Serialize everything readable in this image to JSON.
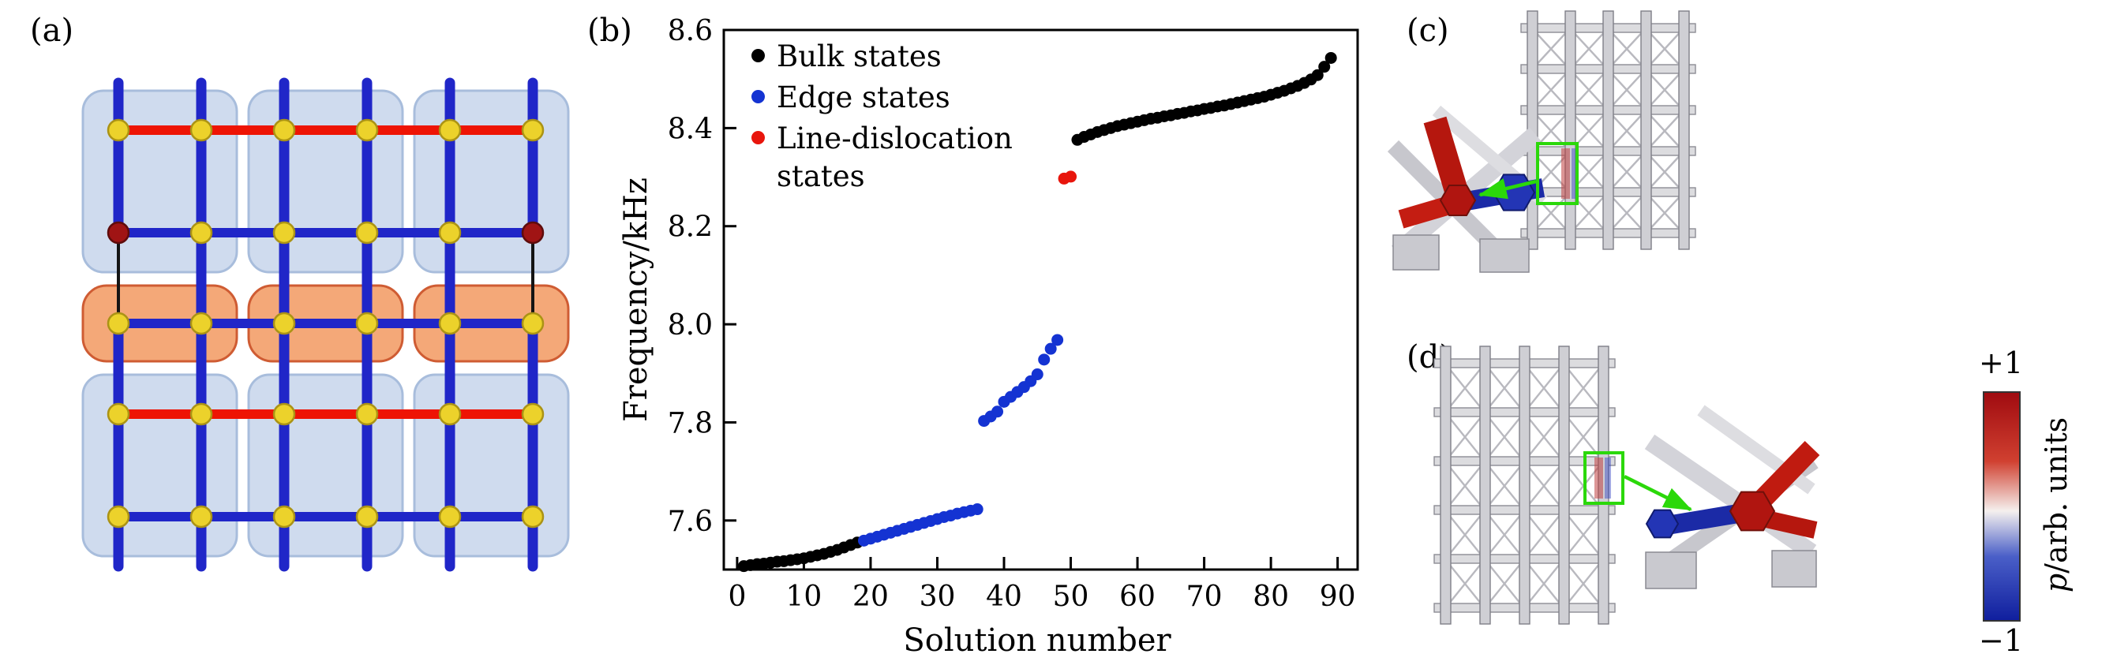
{
  "figure": {
    "background": "#ffffff",
    "panel_labels": {
      "a": "(a)",
      "b": "(b)",
      "c": "(c)",
      "d": "(d)"
    }
  },
  "lattice": {
    "bond_blue_color": "#2026c8",
    "bond_red_color": "#ee1404",
    "bond_dislocation_color": "#141414",
    "site_color": "#ecd22b",
    "edge_site_color": "#a01414",
    "unit_cell_fill": "#cfdbee",
    "dislocation_cell_fill": "#f4a878"
  },
  "chart_data": {
    "type": "scatter",
    "title": "",
    "xlabel": "Solution number",
    "ylabel": "Frequency/kHz",
    "xlim": [
      -2,
      93
    ],
    "ylim": [
      7.5,
      8.6
    ],
    "xticks": [
      0,
      10,
      20,
      30,
      40,
      50,
      60,
      70,
      80,
      90
    ],
    "xtick_labels": [
      "0",
      "10",
      "20",
      "30",
      "40",
      "50",
      "60",
      "70",
      "80",
      "90"
    ],
    "yticks": [
      7.6,
      7.8,
      8.0,
      8.2,
      8.4,
      8.6
    ],
    "ytick_labels": [
      "7.6",
      "7.8",
      "8.0",
      "8.2",
      "8.4",
      "8.6"
    ],
    "grid": false,
    "legend_position": "upper-left",
    "series": [
      {
        "name": "Bulk states",
        "color": "#000000",
        "points": [
          [
            1,
            7.507
          ],
          [
            2,
            7.509
          ],
          [
            3,
            7.511
          ],
          [
            4,
            7.512
          ],
          [
            5,
            7.514
          ],
          [
            6,
            7.516
          ],
          [
            7,
            7.517
          ],
          [
            8,
            7.519
          ],
          [
            9,
            7.521
          ],
          [
            10,
            7.523
          ],
          [
            11,
            7.526
          ],
          [
            12,
            7.529
          ],
          [
            13,
            7.532
          ],
          [
            14,
            7.536
          ],
          [
            15,
            7.54
          ],
          [
            16,
            7.545
          ],
          [
            17,
            7.55
          ],
          [
            18,
            7.555
          ],
          [
            51,
            8.376
          ],
          [
            52,
            8.382
          ],
          [
            53,
            8.387
          ],
          [
            54,
            8.392
          ],
          [
            55,
            8.396
          ],
          [
            56,
            8.4
          ],
          [
            57,
            8.404
          ],
          [
            58,
            8.407
          ],
          [
            59,
            8.41
          ],
          [
            60,
            8.413
          ],
          [
            61,
            8.416
          ],
          [
            62,
            8.419
          ],
          [
            63,
            8.421
          ],
          [
            64,
            8.424
          ],
          [
            65,
            8.426
          ],
          [
            66,
            8.429
          ],
          [
            67,
            8.431
          ],
          [
            68,
            8.434
          ],
          [
            69,
            8.436
          ],
          [
            70,
            8.439
          ],
          [
            71,
            8.441
          ],
          [
            72,
            8.444
          ],
          [
            73,
            8.446
          ],
          [
            74,
            8.449
          ],
          [
            75,
            8.452
          ],
          [
            76,
            8.455
          ],
          [
            77,
            8.458
          ],
          [
            78,
            8.461
          ],
          [
            79,
            8.464
          ],
          [
            80,
            8.468
          ],
          [
            81,
            8.472
          ],
          [
            82,
            8.476
          ],
          [
            83,
            8.481
          ],
          [
            84,
            8.486
          ],
          [
            85,
            8.492
          ],
          [
            86,
            8.499
          ],
          [
            87,
            8.508
          ],
          [
            88,
            8.525
          ],
          [
            89,
            8.543
          ]
        ]
      },
      {
        "name": "Edge states",
        "color": "#1433d2",
        "points": [
          [
            19,
            7.559
          ],
          [
            20,
            7.563
          ],
          [
            21,
            7.567
          ],
          [
            22,
            7.571
          ],
          [
            23,
            7.575
          ],
          [
            24,
            7.579
          ],
          [
            25,
            7.583
          ],
          [
            26,
            7.587
          ],
          [
            27,
            7.591
          ],
          [
            28,
            7.595
          ],
          [
            29,
            7.599
          ],
          [
            30,
            7.603
          ],
          [
            31,
            7.607
          ],
          [
            32,
            7.61
          ],
          [
            33,
            7.614
          ],
          [
            34,
            7.617
          ],
          [
            35,
            7.62
          ],
          [
            36,
            7.623
          ],
          [
            37,
            7.803
          ],
          [
            38,
            7.812
          ],
          [
            39,
            7.822
          ],
          [
            40,
            7.842
          ],
          [
            41,
            7.852
          ],
          [
            42,
            7.862
          ],
          [
            43,
            7.872
          ],
          [
            44,
            7.884
          ],
          [
            45,
            7.898
          ],
          [
            46,
            7.928
          ],
          [
            47,
            7.95
          ],
          [
            48,
            7.968
          ]
        ]
      },
      {
        "name": "Line-dislocation states",
        "color": "#e8150c",
        "points": [
          [
            49,
            8.297
          ],
          [
            50,
            8.301
          ]
        ]
      }
    ]
  },
  "renders": {
    "structure_color": "#d6d6da",
    "highlight_box_color": "#2bd80a",
    "positive_pressure_color": "#b5170e",
    "negative_pressure_color": "#1b2aa6"
  },
  "colorbar": {
    "top_label": "+1",
    "bottom_label": "−1",
    "symbol": "p",
    "units": "/arb. units",
    "gradient": [
      "#a00b10",
      "#d04030",
      "#f5f0ee",
      "#4a5fc8",
      "#101f9e"
    ]
  }
}
